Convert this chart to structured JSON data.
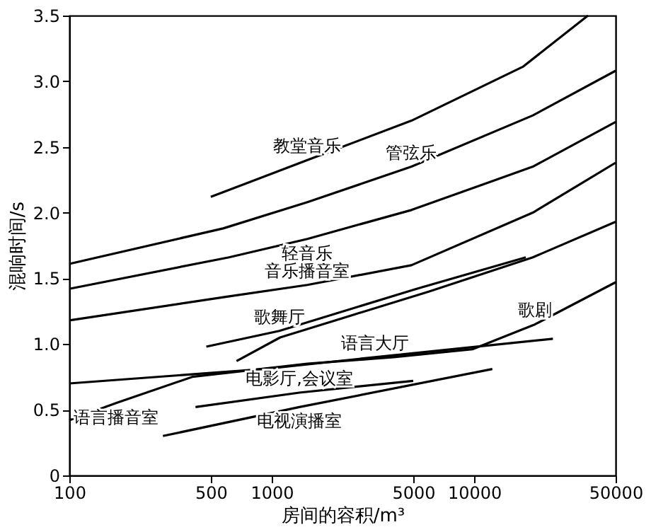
{
  "chart_data": {
    "type": "line",
    "xlabel": "房间的容积/m³",
    "ylabel": "混响时间/s",
    "log": "x",
    "grid": false,
    "legend": false,
    "marker": "none",
    "line_style": "solid",
    "xlim": [
      100,
      50000
    ],
    "xticks": [
      100,
      500,
      1000,
      5000,
      10000,
      50000
    ],
    "ylim": [
      0,
      3.5
    ],
    "yticks": [
      0,
      0.5,
      {
        "value": 1,
        "label": "1.0"
      },
      1.5,
      {
        "value": 2,
        "label": "2.0"
      },
      2.5,
      {
        "value": 3,
        "label": "3.0"
      },
      3.5
    ],
    "series": [
      {
        "color": "#000000",
        "x": [
          500,
          1500,
          4900,
          17400,
          36500
        ],
        "values": [
          2.12,
          2.4,
          2.7,
          3.11,
          3.5
        ]
      },
      {
        "color": "#000000",
        "x": [
          100,
          575,
          1500,
          4900,
          19500,
          50000
        ],
        "values": [
          1.61,
          1.88,
          2.08,
          2.35,
          2.74,
          3.08
        ]
      },
      {
        "color": "#000000",
        "x": [
          100,
          615,
          1500,
          4900,
          19500,
          50000
        ],
        "values": [
          1.42,
          1.66,
          1.8,
          2.02,
          2.35,
          2.69
        ]
      },
      {
        "color": "#000000",
        "x": [
          100,
          600,
          1500,
          4900,
          19500,
          50000
        ],
        "values": [
          1.18,
          1.36,
          1.45,
          1.6,
          2.0,
          2.38
        ]
      },
      {
        "color": "#000000",
        "x": [
          475,
          1090,
          5200,
          18000
        ],
        "values": [
          0.98,
          1.1,
          1.42,
          1.66
        ]
      },
      {
        "color": "#000000",
        "x": [
          670,
          1100,
          2500,
          6000,
          19500,
          50000
        ],
        "values": [
          0.87,
          1.05,
          1.22,
          1.4,
          1.66,
          1.93
        ]
      },
      {
        "color": "#000000",
        "x": [
          100,
          170,
          405,
          1500,
          4000,
          9800,
          20000,
          50000
        ],
        "values": [
          0.42,
          0.55,
          0.75,
          0.85,
          0.9,
          0.96,
          1.15,
          1.47
        ]
      },
      {
        "color": "#000000",
        "x": [
          100,
          500,
          915,
          3240,
          24500
        ],
        "values": [
          0.7,
          0.78,
          0.81,
          0.9,
          1.04
        ]
      },
      {
        "color": "#000000",
        "x": [
          420,
          1370,
          5000
        ],
        "values": [
          0.52,
          0.63,
          0.72
        ]
      },
      {
        "color": "#000000",
        "x": [
          290,
          1370,
          12300
        ],
        "values": [
          0.3,
          0.52,
          0.81
        ]
      }
    ],
    "annotations": [
      {
        "text": "教堂音乐",
        "x": 1500,
        "y": 2.4
      },
      {
        "text": "管弦乐",
        "x": 4900,
        "y": 2.35
      },
      {
        "text": "轻音乐",
        "x": 1500,
        "y": 1.8
      },
      {
        "text": "音乐播音室",
        "x": 1500,
        "y": 1.45
      },
      {
        "text": "歌舞厅",
        "x": 1090,
        "y": 1.1
      },
      {
        "text": "歌剧",
        "x": 20000,
        "y": 1.15
      },
      {
        "text": "语言大厅",
        "x": 3240,
        "y": 0.9
      },
      {
        "text": "电影厅,会议室",
        "x": 1370,
        "y": 0.63
      },
      {
        "text": "语言播音室",
        "x": 170,
        "y": 0.55
      },
      {
        "text": "电视演播室",
        "x": 1370,
        "y": 0.52
      }
    ]
  }
}
